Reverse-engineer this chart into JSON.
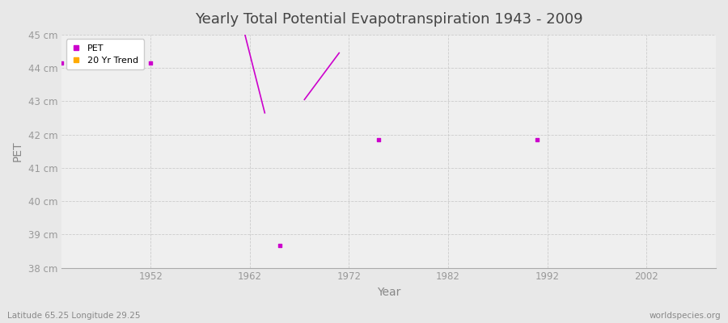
{
  "title": "Yearly Total Potential Evapotranspiration 1943 - 2009",
  "xlabel": "Year",
  "ylabel": "PET",
  "footnote_left": "Latitude 65.25 Longitude 29.25",
  "footnote_right": "worldspecies.org",
  "bg_color": "#e8e8e8",
  "plot_bg_color": "#efefef",
  "grid_color": "#cccccc",
  "ylim": [
    38,
    45
  ],
  "xlim": [
    1943,
    2009
  ],
  "yticks": [
    38,
    39,
    40,
    41,
    42,
    43,
    44,
    45
  ],
  "ytick_labels": [
    "38 cm",
    "39 cm",
    "40 cm",
    "41 cm",
    "42 cm",
    "43 cm",
    "44 cm",
    "45 cm"
  ],
  "xticks": [
    1952,
    1962,
    1972,
    1982,
    1992,
    2002
  ],
  "pet_color": "#cc00cc",
  "trend_color": "#cc00cc",
  "pet_points_x": [
    1943,
    1952,
    1965,
    1975,
    1991
  ],
  "pet_points_y": [
    44.15,
    44.15,
    38.68,
    41.85,
    41.85
  ],
  "trend_segments": [
    {
      "x": [
        1961.5,
        1963.5
      ],
      "y": [
        45.0,
        42.65
      ]
    },
    {
      "x": [
        1967.5,
        1971.0
      ],
      "y": [
        43.05,
        44.45
      ]
    }
  ]
}
